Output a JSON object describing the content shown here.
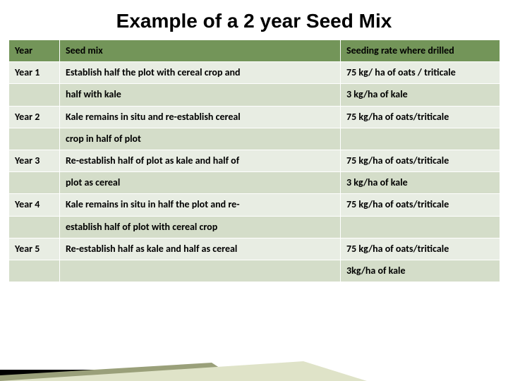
{
  "title": "Example of a 2 year Seed Mix",
  "colors": {
    "header_bg": "#739559",
    "band_a": "#e8ede3",
    "band_b": "#d4ddc9",
    "border": "#ffffff",
    "text": "#000000",
    "deco_line1": "#000000",
    "deco_line2": "#9aa07a",
    "deco_line3": "#dfe3c8"
  },
  "headers": {
    "year": "Year",
    "mix": "Seed mix",
    "rate": "Seeding rate where drilled"
  },
  "rows": [
    {
      "band": "a",
      "year": "Year 1",
      "mix": "Establish half the plot with cereal crop and",
      "rate": "75 kg/ ha of oats / triticale"
    },
    {
      "band": "b",
      "year": "",
      "mix": "half with kale",
      "rate": "3 kg/ha of kale"
    },
    {
      "band": "a",
      "year": "Year 2",
      "mix": "Kale remains in situ and re-establish cereal",
      "rate": "75 kg/ha of oats/triticale"
    },
    {
      "band": "b",
      "year": "",
      "mix": "crop in half of plot",
      "rate": ""
    },
    {
      "band": "a",
      "year": "Year 3",
      "mix": "Re-establish half of plot as kale and half of",
      "rate": "75 kg/ha of oats/triticale"
    },
    {
      "band": "b",
      "year": "",
      "mix": "plot as cereal",
      "rate": "3 kg/ha of kale"
    },
    {
      "band": "a",
      "year": "Year 4",
      "mix": "Kale remains in situ in half the plot and re-",
      "rate": "75 kg/ha of oats/triticale"
    },
    {
      "band": "b",
      "year": "",
      "mix": "establish half of plot with cereal crop",
      "rate": ""
    },
    {
      "band": "a",
      "year": "Year 5",
      "mix": "Re-establish half as kale and half as cereal",
      "rate": "75 kg/ha of oats/triticale"
    },
    {
      "band": "b",
      "year": "",
      "mix": "",
      "rate": "3kg/ha of kale"
    }
  ]
}
